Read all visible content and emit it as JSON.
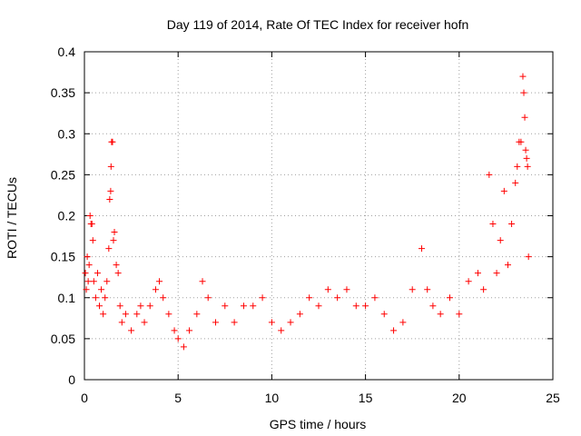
{
  "chart_data": {
    "type": "scatter",
    "title": "Day 119 of 2014, Rate Of TEC Index for receiver hofn",
    "xlabel": "GPS time / hours",
    "ylabel": "ROTI / TECUs",
    "xlim": [
      0,
      25
    ],
    "ylim": [
      0,
      0.4
    ],
    "x_ticks": [
      0,
      5,
      10,
      15,
      20,
      25
    ],
    "x_tick_labels": [
      "0",
      "5",
      "10",
      "15",
      "20",
      "25"
    ],
    "y_ticks": [
      0,
      0.05,
      0.1,
      0.15,
      0.2,
      0.25,
      0.3,
      0.35,
      0.4
    ],
    "y_tick_labels": [
      "0",
      "0.05",
      "0.1",
      "0.15",
      "0.2",
      "0.25",
      "0.3",
      "0.35",
      "0.4"
    ],
    "grid": true,
    "marker": "+",
    "marker_color": "#ff0000",
    "series": [
      {
        "values_note_free": true,
        "points": [
          [
            0.05,
            0.13
          ],
          [
            0.1,
            0.11
          ],
          [
            0.15,
            0.15
          ],
          [
            0.2,
            0.12
          ],
          [
            0.25,
            0.14
          ],
          [
            0.3,
            0.2
          ],
          [
            0.35,
            0.19
          ],
          [
            0.4,
            0.19
          ],
          [
            0.45,
            0.17
          ],
          [
            0.5,
            0.12
          ],
          [
            0.6,
            0.1
          ],
          [
            0.7,
            0.13
          ],
          [
            0.8,
            0.09
          ],
          [
            0.9,
            0.11
          ],
          [
            1.0,
            0.08
          ],
          [
            1.1,
            0.1
          ],
          [
            1.2,
            0.12
          ],
          [
            1.3,
            0.16
          ],
          [
            1.35,
            0.22
          ],
          [
            1.4,
            0.23
          ],
          [
            1.45,
            0.29
          ],
          [
            1.5,
            0.29
          ],
          [
            1.42,
            0.26
          ],
          [
            1.55,
            0.17
          ],
          [
            1.6,
            0.18
          ],
          [
            1.7,
            0.14
          ],
          [
            1.8,
            0.13
          ],
          [
            1.9,
            0.09
          ],
          [
            2.0,
            0.07
          ],
          [
            2.2,
            0.08
          ],
          [
            2.5,
            0.06
          ],
          [
            2.8,
            0.08
          ],
          [
            3.0,
            0.09
          ],
          [
            3.2,
            0.07
          ],
          [
            3.5,
            0.09
          ],
          [
            3.8,
            0.11
          ],
          [
            4.0,
            0.12
          ],
          [
            4.2,
            0.1
          ],
          [
            4.5,
            0.08
          ],
          [
            4.8,
            0.06
          ],
          [
            5.0,
            0.05
          ],
          [
            5.3,
            0.04
          ],
          [
            5.6,
            0.06
          ],
          [
            6.0,
            0.08
          ],
          [
            6.3,
            0.12
          ],
          [
            6.6,
            0.1
          ],
          [
            7.0,
            0.07
          ],
          [
            7.5,
            0.09
          ],
          [
            8.0,
            0.07
          ],
          [
            8.5,
            0.09
          ],
          [
            9.0,
            0.09
          ],
          [
            9.5,
            0.1
          ],
          [
            10.0,
            0.07
          ],
          [
            10.5,
            0.06
          ],
          [
            11.0,
            0.07
          ],
          [
            11.5,
            0.08
          ],
          [
            12.0,
            0.1
          ],
          [
            12.5,
            0.09
          ],
          [
            13.0,
            0.11
          ],
          [
            13.5,
            0.1
          ],
          [
            14.0,
            0.11
          ],
          [
            14.5,
            0.09
          ],
          [
            15.0,
            0.09
          ],
          [
            15.5,
            0.1
          ],
          [
            16.0,
            0.08
          ],
          [
            16.5,
            0.06
          ],
          [
            17.0,
            0.07
          ],
          [
            17.5,
            0.11
          ],
          [
            18.0,
            0.16
          ],
          [
            18.3,
            0.11
          ],
          [
            18.6,
            0.09
          ],
          [
            19.0,
            0.08
          ],
          [
            19.5,
            0.1
          ],
          [
            20.0,
            0.08
          ],
          [
            20.5,
            0.12
          ],
          [
            21.0,
            0.13
          ],
          [
            21.3,
            0.11
          ],
          [
            21.6,
            0.25
          ],
          [
            21.8,
            0.19
          ],
          [
            22.0,
            0.13
          ],
          [
            22.2,
            0.17
          ],
          [
            22.4,
            0.23
          ],
          [
            22.6,
            0.14
          ],
          [
            22.8,
            0.19
          ],
          [
            23.0,
            0.24
          ],
          [
            23.1,
            0.26
          ],
          [
            23.2,
            0.29
          ],
          [
            23.3,
            0.29
          ],
          [
            23.4,
            0.37
          ],
          [
            23.45,
            0.35
          ],
          [
            23.5,
            0.32
          ],
          [
            23.55,
            0.28
          ],
          [
            23.6,
            0.27
          ],
          [
            23.65,
            0.26
          ],
          [
            23.7,
            0.15
          ]
        ]
      }
    ]
  }
}
